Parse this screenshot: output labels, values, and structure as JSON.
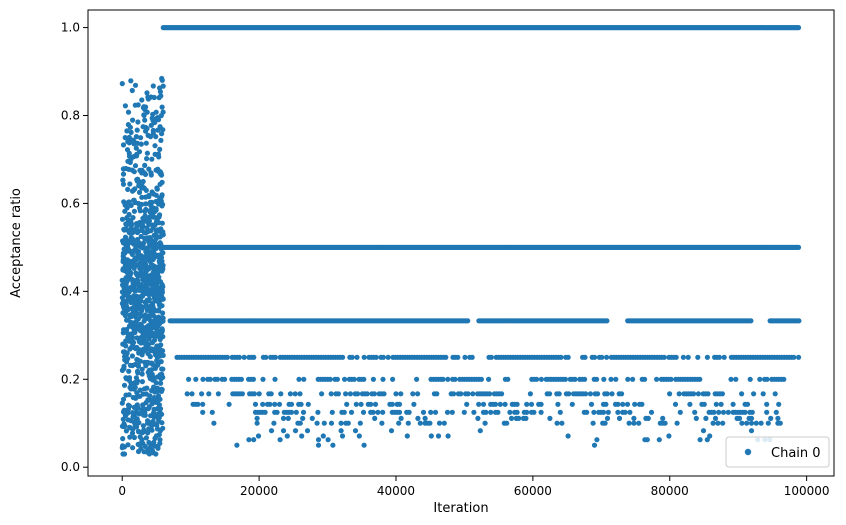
{
  "chart_data": {
    "type": "scatter",
    "title": "",
    "xlabel": "Iteration",
    "ylabel": "Acceptance ratio",
    "xlim": [
      -5000,
      104000
    ],
    "ylim": [
      -0.02,
      1.04
    ],
    "xticks": [
      0,
      20000,
      40000,
      60000,
      80000,
      100000
    ],
    "xtick_labels": [
      "0",
      "20000",
      "40000",
      "60000",
      "80000",
      "100000"
    ],
    "yticks": [
      0.0,
      0.2,
      0.4,
      0.6,
      0.8,
      1.0
    ],
    "ytick_labels": [
      "0.0",
      "0.2",
      "0.4",
      "0.6",
      "0.8",
      "1.0"
    ],
    "grid": false,
    "legend_position": "bottom-right",
    "series": [
      {
        "name": "Chain 0",
        "color": "#1f77b4",
        "marker": "circle",
        "burn_in": {
          "x_range": [
            0,
            6000
          ],
          "y_range": [
            0.03,
            0.94
          ]
        },
        "levels": [
          {
            "y": 1.0,
            "x_range": [
              6000,
              99000
            ],
            "coverage": "continuous"
          },
          {
            "y": 0.5,
            "x_range": [
              6000,
              99000
            ],
            "coverage": "continuous"
          },
          {
            "y": 0.333,
            "x_range": [
              7000,
              99000
            ],
            "coverage": "mostly continuous with gaps"
          },
          {
            "y": 0.25,
            "x_range": [
              8000,
              99000
            ],
            "coverage": "frequent"
          },
          {
            "y": 0.2,
            "x_range": [
              9000,
              97000
            ],
            "coverage": "clusters"
          },
          {
            "y": 0.167,
            "x_range": [
              9500,
              97000
            ],
            "coverage": "clusters"
          },
          {
            "y": 0.143,
            "x_range": [
              10000,
              97000
            ],
            "coverage": "sparse clusters"
          },
          {
            "y": 0.125,
            "x_range": [
              10000,
              97000
            ],
            "coverage": "sparse clusters"
          },
          {
            "y": 0.111,
            "x_range": [
              12000,
              97000
            ],
            "coverage": "sparse"
          },
          {
            "y": 0.1,
            "x_range": [
              12000,
              97000
            ],
            "coverage": "sparse"
          },
          {
            "y": 0.083,
            "x_range": [
              12000,
              97000
            ],
            "coverage": "rare"
          },
          {
            "y": 0.071,
            "x_range": [
              15000,
              96000
            ],
            "coverage": "rare"
          },
          {
            "y": 0.0625,
            "x_range": [
              15000,
              95000
            ],
            "coverage": "rare"
          },
          {
            "y": 0.05,
            "x_range": [
              15000,
              75000
            ],
            "coverage": "rare"
          }
        ]
      }
    ]
  }
}
